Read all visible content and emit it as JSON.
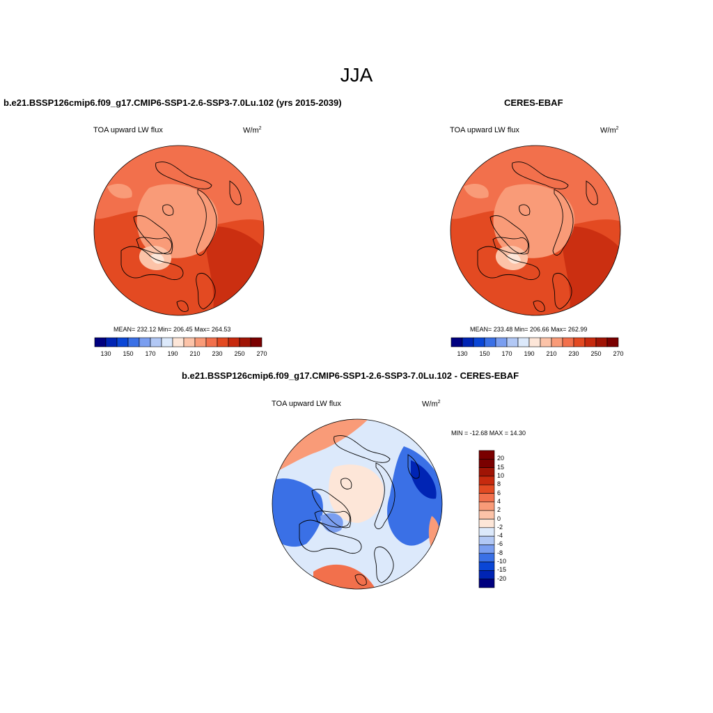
{
  "page": {
    "title": "JJA"
  },
  "panels": [
    {
      "id": "model",
      "title": "b.e21.BSSP126cmip6.f09_g17.CMIP6-SSP1-2.6-SSP3-7.0Lu.102 (yrs 2015-2039)",
      "variable": "TOA upward LW flux",
      "units": "W/m",
      "units_sup": "2",
      "stats": "MEAN= 232.12  Min= 206.45  Max= 264.53",
      "colorbar_labels": [
        "130",
        "150",
        "170",
        "190",
        "210",
        "230",
        "250",
        "270"
      ]
    },
    {
      "id": "obs",
      "title": "CERES-EBAF",
      "variable": "TOA upward LW flux",
      "units": "W/m",
      "units_sup": "2",
      "stats": "MEAN= 233.48  Min= 206.66  Max= 262.99",
      "colorbar_labels": [
        "130",
        "150",
        "170",
        "190",
        "210",
        "230",
        "250",
        "270"
      ]
    },
    {
      "id": "diff",
      "title": "b.e21.BSSP126cmip6.f09_g17.CMIP6-SSP1-2.6-SSP3-7.0Lu.102 - CERES-EBAF",
      "variable": "TOA upward LW flux",
      "units": "W/m",
      "units_sup": "2",
      "stats": "MIN = -12.68 MAX =  14.30",
      "colorbar_labels": [
        "20",
        "15",
        "10",
        "8",
        "6",
        "4",
        "2",
        "0",
        "-2",
        "-4",
        "-6",
        "-8",
        "-10",
        "-15",
        "-20"
      ]
    }
  ],
  "colors": {
    "abs_scale": [
      "#00007f",
      "#0024b4",
      "#0a46d6",
      "#3a70e6",
      "#7a9ef0",
      "#b2c8f5",
      "#dce9fb",
      "#fde6d8",
      "#fcc3a8",
      "#f99b78",
      "#f2704c",
      "#e34a22",
      "#c72a0e",
      "#a01405",
      "#7a0000"
    ],
    "diff_scale": [
      "#7a0000",
      "#a01405",
      "#c72a0e",
      "#e34a22",
      "#f2704c",
      "#f99b78",
      "#fcc3a8",
      "#fde6d8",
      "#dce9fb",
      "#b2c8f5",
      "#7a9ef0",
      "#3a70e6",
      "#0a46d6",
      "#0024b4",
      "#00007f"
    ],
    "land_outline": "#000000"
  }
}
